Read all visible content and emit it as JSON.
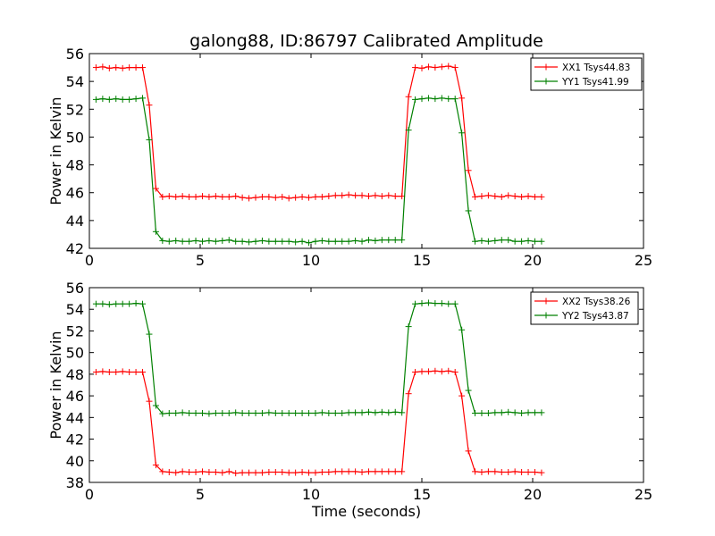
{
  "figure": {
    "title": "galong88, ID:86797 Calibrated Amplitude"
  },
  "chart_data": [
    {
      "type": "line",
      "title": "galong88, ID:86797 Calibrated Amplitude",
      "xlabel": "",
      "ylabel": "Power in Kelvin",
      "xlim": [
        0,
        25
      ],
      "ylim": [
        42,
        56
      ],
      "xticks": [
        0,
        5,
        10,
        15,
        20,
        25
      ],
      "yticks": [
        42,
        44,
        46,
        48,
        50,
        52,
        54,
        56
      ],
      "grid": false,
      "legend_position": "top-right",
      "x": [
        0.3,
        0.6,
        0.9,
        1.2,
        1.5,
        1.8,
        2.1,
        2.4,
        2.7,
        3.0,
        3.3,
        3.6,
        3.9,
        4.2,
        4.5,
        4.8,
        5.1,
        5.4,
        5.7,
        6.0,
        6.3,
        6.6,
        6.9,
        7.2,
        7.5,
        7.8,
        8.1,
        8.4,
        8.7,
        9.0,
        9.3,
        9.6,
        9.9,
        10.2,
        10.5,
        10.8,
        11.1,
        11.4,
        11.7,
        12.0,
        12.3,
        12.6,
        12.9,
        13.2,
        13.5,
        13.8,
        14.1,
        14.4,
        14.7,
        15.0,
        15.3,
        15.6,
        15.9,
        16.2,
        16.5,
        16.8,
        17.1,
        17.4,
        17.7,
        18.0,
        18.3,
        18.6,
        18.9,
        19.2,
        19.5,
        19.8,
        20.1,
        20.4
      ],
      "series": [
        {
          "name": "XX1 Tsys44.83",
          "color": "#ff0000",
          "values": [
            55.0,
            55.05,
            54.95,
            55.0,
            54.95,
            55.0,
            55.0,
            55.0,
            52.3,
            46.3,
            45.7,
            45.75,
            45.7,
            45.75,
            45.7,
            45.7,
            45.75,
            45.7,
            45.75,
            45.7,
            45.7,
            45.75,
            45.65,
            45.6,
            45.65,
            45.7,
            45.7,
            45.65,
            45.7,
            45.6,
            45.65,
            45.7,
            45.65,
            45.7,
            45.7,
            45.75,
            45.8,
            45.8,
            45.85,
            45.8,
            45.8,
            45.75,
            45.8,
            45.75,
            45.8,
            45.75,
            45.75,
            52.9,
            55.0,
            54.95,
            55.05,
            55.0,
            55.05,
            55.1,
            55.0,
            52.8,
            47.6,
            45.7,
            45.75,
            45.8,
            45.75,
            45.7,
            45.8,
            45.75,
            45.7,
            45.75,
            45.7,
            45.7
          ]
        },
        {
          "name": "YY1 Tsys41.99",
          "color": "#008000",
          "values": [
            52.7,
            52.75,
            52.7,
            52.75,
            52.7,
            52.7,
            52.75,
            52.8,
            49.8,
            43.2,
            42.55,
            42.5,
            42.55,
            42.5,
            42.5,
            42.55,
            42.5,
            42.55,
            42.5,
            42.55,
            42.6,
            42.5,
            42.5,
            42.45,
            42.5,
            42.55,
            42.5,
            42.5,
            42.5,
            42.5,
            42.45,
            42.5,
            42.4,
            42.5,
            42.55,
            42.5,
            42.5,
            42.5,
            42.5,
            42.55,
            42.5,
            42.6,
            42.55,
            42.6,
            42.6,
            42.6,
            42.6,
            50.5,
            52.7,
            52.75,
            52.8,
            52.75,
            52.8,
            52.75,
            52.75,
            50.3,
            44.7,
            42.5,
            42.55,
            42.5,
            42.55,
            42.6,
            42.6,
            42.5,
            42.5,
            42.55,
            42.5,
            42.5
          ]
        }
      ]
    },
    {
      "type": "line",
      "title": "",
      "xlabel": "Time (seconds)",
      "ylabel": "Power in Kelvin",
      "xlim": [
        0,
        25
      ],
      "ylim": [
        38,
        56
      ],
      "xticks": [
        0,
        5,
        10,
        15,
        20,
        25
      ],
      "yticks": [
        38,
        40,
        42,
        44,
        46,
        48,
        50,
        52,
        54,
        56
      ],
      "grid": false,
      "legend_position": "top-right",
      "x": [
        0.3,
        0.6,
        0.9,
        1.2,
        1.5,
        1.8,
        2.1,
        2.4,
        2.7,
        3.0,
        3.3,
        3.6,
        3.9,
        4.2,
        4.5,
        4.8,
        5.1,
        5.4,
        5.7,
        6.0,
        6.3,
        6.6,
        6.9,
        7.2,
        7.5,
        7.8,
        8.1,
        8.4,
        8.7,
        9.0,
        9.3,
        9.6,
        9.9,
        10.2,
        10.5,
        10.8,
        11.1,
        11.4,
        11.7,
        12.0,
        12.3,
        12.6,
        12.9,
        13.2,
        13.5,
        13.8,
        14.1,
        14.4,
        14.7,
        15.0,
        15.3,
        15.6,
        15.9,
        16.2,
        16.5,
        16.8,
        17.1,
        17.4,
        17.7,
        18.0,
        18.3,
        18.6,
        18.9,
        19.2,
        19.5,
        19.8,
        20.1,
        20.4
      ],
      "series": [
        {
          "name": "XX2 Tsys38.26",
          "color": "#ff0000",
          "values": [
            48.2,
            48.25,
            48.2,
            48.2,
            48.25,
            48.2,
            48.2,
            48.2,
            45.5,
            39.6,
            39.0,
            38.95,
            38.9,
            39.0,
            38.95,
            38.95,
            39.0,
            38.95,
            38.95,
            38.9,
            39.0,
            38.85,
            38.9,
            38.9,
            38.9,
            38.9,
            38.95,
            38.95,
            38.95,
            38.9,
            38.9,
            38.95,
            38.9,
            38.9,
            38.95,
            38.95,
            39.0,
            39.0,
            39.0,
            39.0,
            38.95,
            39.0,
            39.0,
            39.0,
            39.0,
            39.0,
            39.0,
            46.2,
            48.2,
            48.25,
            48.25,
            48.3,
            48.25,
            48.3,
            48.2,
            46.0,
            40.9,
            39.0,
            38.95,
            39.0,
            39.0,
            38.95,
            38.95,
            39.0,
            38.95,
            38.95,
            38.95,
            38.9
          ]
        },
        {
          "name": "YY2 Tsys43.87",
          "color": "#008000",
          "values": [
            54.5,
            54.5,
            54.45,
            54.5,
            54.5,
            54.5,
            54.55,
            54.5,
            51.7,
            45.1,
            44.35,
            44.4,
            44.4,
            44.45,
            44.4,
            44.4,
            44.4,
            44.35,
            44.4,
            44.4,
            44.4,
            44.45,
            44.4,
            44.4,
            44.4,
            44.4,
            44.45,
            44.4,
            44.4,
            44.4,
            44.4,
            44.4,
            44.4,
            44.4,
            44.45,
            44.4,
            44.4,
            44.4,
            44.45,
            44.45,
            44.45,
            44.5,
            44.45,
            44.5,
            44.45,
            44.5,
            44.45,
            52.4,
            54.5,
            54.55,
            54.6,
            54.55,
            54.55,
            54.5,
            54.5,
            52.1,
            46.5,
            44.4,
            44.4,
            44.4,
            44.45,
            44.45,
            44.5,
            44.45,
            44.4,
            44.45,
            44.45,
            44.45
          ]
        }
      ]
    }
  ]
}
